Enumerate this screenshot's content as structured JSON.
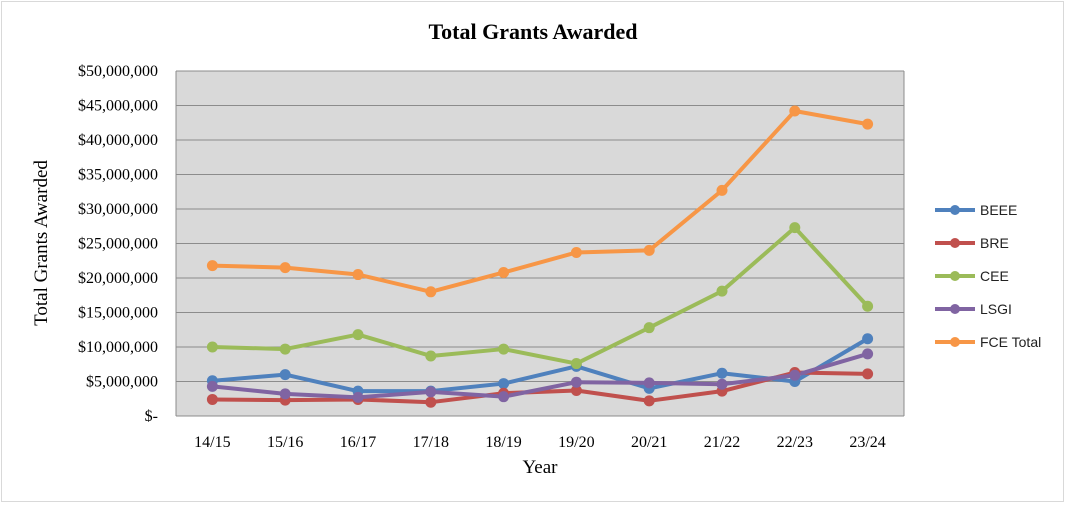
{
  "chart_data": {
    "type": "line",
    "title": "Total Grants Awarded",
    "xlabel": "Year",
    "ylabel": "Total Grants Awarded",
    "categories": [
      "14/15",
      "15/16",
      "16/17",
      "17/18",
      "18/19",
      "19/20",
      "20/21",
      "21/22",
      "22/23",
      "23/24"
    ],
    "ylim": [
      0,
      50000000
    ],
    "yticks": [
      0,
      5000000,
      10000000,
      15000000,
      20000000,
      25000000,
      30000000,
      35000000,
      40000000,
      45000000,
      50000000
    ],
    "ytick_labels": [
      "$-",
      "$5,000,000",
      "$10,000,000",
      "$15,000,000",
      "$20,000,000",
      "$25,000,000",
      "$30,000,000",
      "$35,000,000",
      "$40,000,000",
      "$45,000,000",
      "$50,000,000"
    ],
    "grid": true,
    "legend_position": "right",
    "plot_background": "#d9d9d9",
    "series": [
      {
        "name": "BEEE",
        "color": "#4f81bd",
        "values": [
          5100000,
          6000000,
          3600000,
          3600000,
          4700000,
          7200000,
          4000000,
          6200000,
          5000000,
          11200000
        ]
      },
      {
        "name": "BRE",
        "color": "#c0504d",
        "values": [
          2400000,
          2300000,
          2400000,
          2000000,
          3300000,
          3700000,
          2200000,
          3600000,
          6300000,
          6100000
        ]
      },
      {
        "name": "CEE",
        "color": "#9bbb59",
        "values": [
          10000000,
          9700000,
          11800000,
          8700000,
          9700000,
          7600000,
          12800000,
          18100000,
          27300000,
          15900000
        ]
      },
      {
        "name": "LSGI",
        "color": "#8064a2",
        "values": [
          4300000,
          3200000,
          2700000,
          3500000,
          2800000,
          4900000,
          4800000,
          4600000,
          5900000,
          9000000
        ]
      },
      {
        "name": "FCE Total",
        "color": "#f79646",
        "values": [
          21800000,
          21500000,
          20500000,
          18000000,
          20800000,
          23700000,
          24000000,
          32700000,
          44200000,
          42300000
        ]
      }
    ]
  }
}
